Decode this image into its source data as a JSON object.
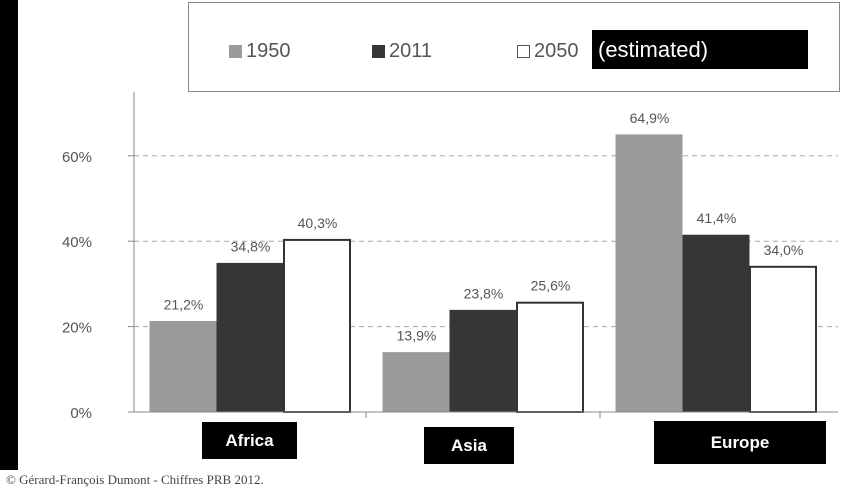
{
  "chart_data": {
    "type": "bar",
    "categories": [
      "Africa",
      "Asia",
      "Europe"
    ],
    "series": [
      {
        "name": "1950",
        "values": [
          21.2,
          13.9,
          64.9
        ],
        "labels": [
          "21,2%",
          "13,9%",
          "64,9%"
        ],
        "color": "#9b9b9b"
      },
      {
        "name": "2011",
        "values": [
          34.8,
          23.8,
          41.4
        ],
        "labels": [
          "34,8%",
          "23,8%",
          "41,4%"
        ],
        "color": "#363636"
      },
      {
        "name": "2050",
        "values": [
          40.3,
          25.6,
          34.0
        ],
        "labels": [
          "40,3%",
          "25,6%",
          "34,0%"
        ],
        "color": "#ffffff"
      }
    ],
    "legend_note": "(estimated)",
    "yticks": [
      "0%",
      "20%",
      "40%",
      "60%"
    ],
    "ylim": [
      0,
      70
    ],
    "grid": true,
    "legend_position": "top"
  },
  "legend_labels": [
    "1950",
    "2011",
    "2050"
  ],
  "credit": "© Gérard-François Dumont - Chiffres PRB 2012."
}
